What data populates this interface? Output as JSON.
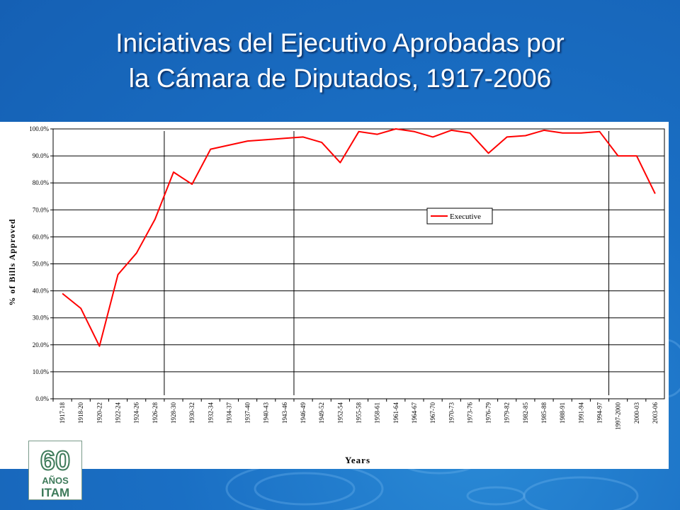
{
  "slide": {
    "title_line1": "Iniciativas del Ejecutivo Aprobadas por",
    "title_line2": "la Cámara de Diputados, 1917-2006"
  },
  "logo": {
    "number": "60",
    "word1": "AÑOS",
    "word2": "ITAM"
  },
  "colors": {
    "background": "#1a6fc4",
    "series_line": "#ff0000",
    "title_text": "#ffffff"
  },
  "chart_data": {
    "type": "line",
    "title": "",
    "xlabel": "Years",
    "ylabel": "% of Bills Approved",
    "ylim": [
      0,
      100
    ],
    "y_ticks": [
      "0.0%",
      "10.0%",
      "20.0%",
      "30.0%",
      "40.0%",
      "50.0%",
      "60.0%",
      "70.0%",
      "80.0%",
      "90.0%",
      "100.0%"
    ],
    "grid": true,
    "legend_position": "center-right",
    "categories": [
      "1917-18",
      "1918-20",
      "1920-22",
      "1922-24",
      "1924-26",
      "1926-28",
      "1928-30",
      "1930-32",
      "1932-34",
      "1934-37",
      "1937-40",
      "1940-43",
      "1943-46",
      "1946-49",
      "1949-52",
      "1952-54",
      "1955-58",
      "1958-61",
      "1961-64",
      "1964-67",
      "1967-70",
      "1970-73",
      "1973-76",
      "1976-79",
      "1979-82",
      "1982-85",
      "1985-88",
      "1988-91",
      "1991-94",
      "1994-97",
      "1997-2000",
      "2000-03",
      "2003-06"
    ],
    "series": [
      {
        "name": "Executive",
        "color": "#ff0000",
        "values": [
          39,
          33.5,
          19.5,
          46,
          54,
          66.5,
          84,
          79.5,
          92.5,
          94,
          95.5,
          96,
          96.5,
          97,
          95,
          87.5,
          99,
          98,
          100,
          99,
          97,
          99.5,
          98.5,
          91,
          97,
          97.5,
          99.5,
          98.5,
          98.5,
          99,
          90,
          90,
          76
        ]
      }
    ],
    "vertical_markers": [
      "1926-28",
      "1943-46",
      "1994-97"
    ]
  }
}
